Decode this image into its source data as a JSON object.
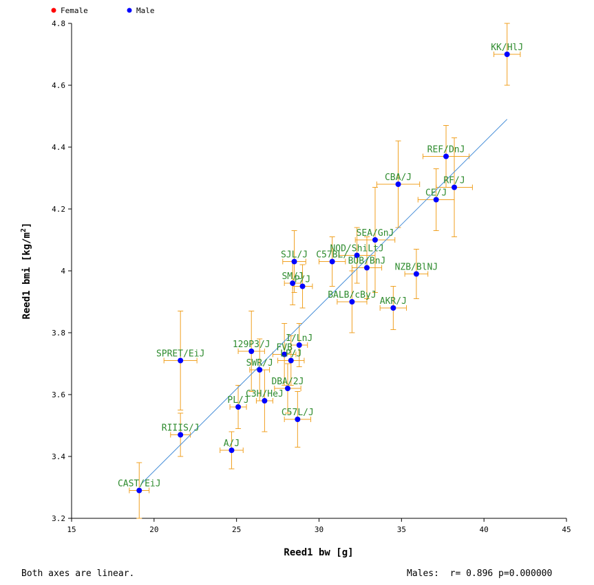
{
  "legend": [
    {
      "name": "Female",
      "color": "#ff0000"
    },
    {
      "name": "Male",
      "color": "#0000ff"
    }
  ],
  "footer": {
    "left": "Both axes are linear.",
    "right": "Males:  r= 0.896 p=0.000000"
  },
  "colors": {
    "point": "#0000ff",
    "error_bar": "#f0a020",
    "fit_line": "#4a90d9",
    "label": "#2e8b2e"
  },
  "chart_data": {
    "type": "scatter",
    "xlabel": "Reed1  bw [g]",
    "ylabel_main": "Reed1  bmi [kg/m",
    "ylabel_sup": "2",
    "ylabel_end": "]",
    "xlim": [
      15,
      45
    ],
    "ylim": [
      3.2,
      4.8
    ],
    "xticks": [
      15,
      20,
      25,
      30,
      35,
      40,
      45
    ],
    "yticks": [
      3.2,
      3.4,
      3.6,
      3.8,
      4,
      4.2,
      4.4,
      4.6,
      4.8
    ],
    "xtick_labels": [
      "15",
      "20",
      "25",
      "30",
      "35",
      "40",
      "45"
    ],
    "ytick_labels": [
      "3.2",
      "3.4",
      "3.6",
      "3.8",
      "4",
      "4.2",
      "4.4",
      "4.6",
      "4.8"
    ],
    "fit_line": {
      "x": [
        19.2,
        41.4
      ],
      "y": [
        3.31,
        4.49
      ]
    },
    "series": [
      {
        "name": "Male",
        "points": [
          {
            "label": "KK/HlJ",
            "x": 41.4,
            "y": 4.7,
            "xerr": 0.8,
            "yerr": 0.1
          },
          {
            "label": "REF/DnJ",
            "x": 37.7,
            "y": 4.37,
            "xerr": 1.4,
            "yerr": 0.1
          },
          {
            "label": "RF/J",
            "x": 38.2,
            "y": 4.27,
            "xerr": 1.1,
            "yerr": 0.16
          },
          {
            "label": "CBA/J",
            "x": 34.8,
            "y": 4.28,
            "xerr": 1.3,
            "yerr": 0.14
          },
          {
            "label": "CE/J",
            "x": 37.1,
            "y": 4.23,
            "xerr": 1.1,
            "yerr": 0.1
          },
          {
            "label": "SEA/GnJ",
            "x": 33.4,
            "y": 4.1,
            "xerr": 1.2,
            "yerr": 0.17
          },
          {
            "label": "NOD/ShiLtJ",
            "x": 32.3,
            "y": 4.05,
            "xerr": 1.1,
            "yerr": 0.09
          },
          {
            "label": "C57BL/",
            "x": 30.8,
            "y": 4.03,
            "xerr": 0.8,
            "yerr": 0.08
          },
          {
            "label": "SJL/J",
            "x": 28.5,
            "y": 4.03,
            "xerr": 0.7,
            "yerr": 0.1
          },
          {
            "label": "BUB/BnJ",
            "x": 32.9,
            "y": 4.01,
            "xerr": 0.9,
            "yerr": 0.1
          },
          {
            "label": "NZB/BlNJ",
            "x": 35.9,
            "y": 3.99,
            "xerr": 0.7,
            "yerr": 0.08
          },
          {
            "label": "SM/J",
            "x": 28.4,
            "y": 3.96,
            "xerr": 0.5,
            "yerr": 0.07
          },
          {
            "label": "P/J",
            "x": 29.0,
            "y": 3.95,
            "xerr": 0.6,
            "yerr": 0.07
          },
          {
            "label": "BALB/cByJ",
            "x": 32.0,
            "y": 3.9,
            "xerr": 0.9,
            "yerr": 0.1
          },
          {
            "label": "AKR/J",
            "x": 34.5,
            "y": 3.88,
            "xerr": 0.8,
            "yerr": 0.07
          },
          {
            "label": "I/LnJ",
            "x": 28.8,
            "y": 3.76,
            "xerr": 0.5,
            "yerr": 0.07
          },
          {
            "label": "129P3/J",
            "x": 25.9,
            "y": 3.74,
            "xerr": 0.8,
            "yerr": 0.13
          },
          {
            "label": "FVB",
            "x": 27.9,
            "y": 3.73,
            "xerr": 0.7,
            "yerr": 0.1
          },
          {
            "label": "LP/J",
            "x": 28.3,
            "y": 3.71,
            "xerr": 0.8,
            "yerr": 0.08
          },
          {
            "label": "SPRET/EiJ",
            "x": 21.6,
            "y": 3.71,
            "xerr": 1.0,
            "yerr": 0.16
          },
          {
            "label": "SWR/J",
            "x": 26.4,
            "y": 3.68,
            "xerr": 0.6,
            "yerr": 0.1
          },
          {
            "label": "DBA/2J",
            "x": 28.1,
            "y": 3.62,
            "xerr": 0.8,
            "yerr": 0.08
          },
          {
            "label": "C3H/HeJ",
            "x": 26.7,
            "y": 3.58,
            "xerr": 0.5,
            "yerr": 0.1
          },
          {
            "label": "PL/J",
            "x": 25.1,
            "y": 3.56,
            "xerr": 0.5,
            "yerr": 0.07
          },
          {
            "label": "C57L/J",
            "x": 28.7,
            "y": 3.52,
            "xerr": 0.8,
            "yerr": 0.09
          },
          {
            "label": "RIIIS/J",
            "x": 21.6,
            "y": 3.47,
            "xerr": 0.6,
            "yerr": 0.07
          },
          {
            "label": "A/J",
            "x": 24.7,
            "y": 3.42,
            "xerr": 0.7,
            "yerr": 0.06
          },
          {
            "label": "CAST/EiJ",
            "x": 19.1,
            "y": 3.29,
            "xerr": 0.6,
            "yerr": 0.09
          }
        ]
      }
    ]
  }
}
